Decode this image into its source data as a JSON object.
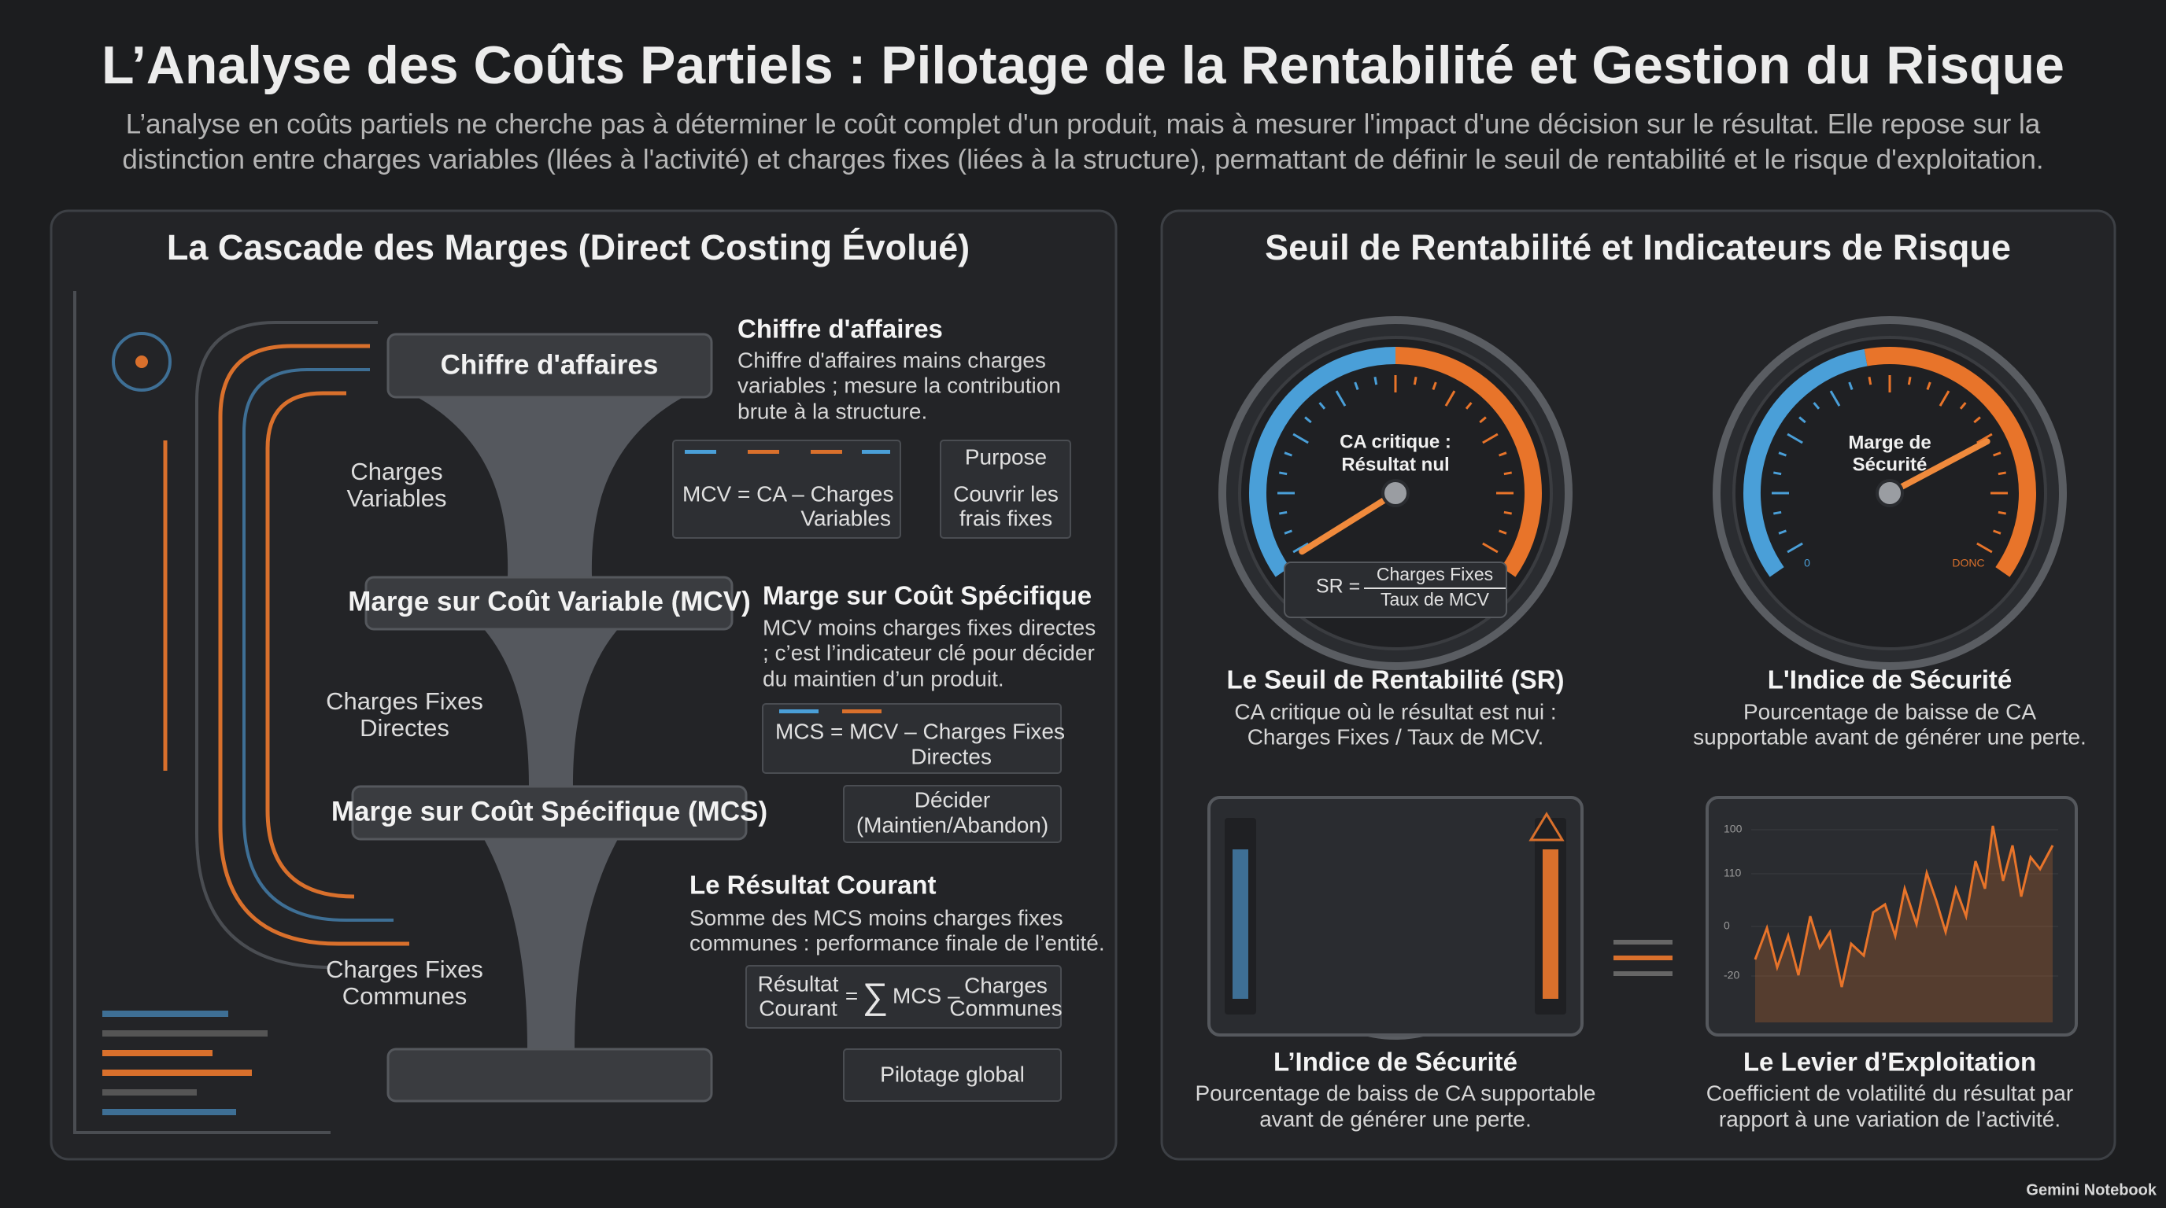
{
  "header": {
    "title": "L’Analyse des Coûts Partiels : Pilotage de la Rentabilité et Gestion du Risque",
    "subtitle": [
      "L’analyse en coûts partiels ne cherche pas à déterminer le coût complet d'un produit, mais à mesurer l'impact d'une décision sur le résultat. Elle repose sur la",
      "distinction entre charges variables (llées à l'activité) et charges fixes (liées à la structure), permattant de définir le seuil de rentabilité et le risque d'exploitation."
    ]
  },
  "left_panel": {
    "title": "La Cascade des Marges (Direct Costing Évolué)",
    "boxes": {
      "ca": "Chiffre d'affaires",
      "mcv": "Marge sur Coût Variable (MCV)",
      "mcs": "Marge sur Coût Spécifique (MCS)"
    },
    "side_labels": [
      [
        "Charges",
        "Variables"
      ],
      [
        "Charges Fixes",
        "Directes"
      ],
      [
        "Charges Fixes",
        "Communes"
      ]
    ],
    "steps": [
      {
        "heading": "Chiffre d'affaires",
        "description": [
          "Chiffre d'affaires mains charges",
          "variables ; mesure la contribution",
          "brute à la structure."
        ],
        "formula": [
          "MCV = CA – Charges",
          "Variables"
        ],
        "note": {
          "title": "Purpose",
          "lines": [
            "Couvrir les",
            "frais fixes"
          ]
        }
      },
      {
        "heading": "Marge sur Coût Spécifique",
        "description": [
          "MCV moins charges fixes directes",
          "; c’est l’indicateur clé pour décider",
          "du maintien d’un produit."
        ],
        "formula": [
          "MCS = MCV – Charges Fixes",
          "Directes"
        ],
        "note": {
          "lines": [
            "Décider",
            "(Maintien/Abandon)"
          ]
        }
      },
      {
        "heading": "Le Résultat Courant",
        "description": [
          "Somme des MCS moins charges fixes",
          "communes : performance finale de l’entité."
        ],
        "formula": {
          "left": [
            "Résultat",
            "Courant"
          ],
          "equals": "=",
          "sigma": "∑",
          "term": "MCS –",
          "right": [
            "Charges",
            "Communes"
          ]
        },
        "note": {
          "lines": [
            "Pilotage global"
          ]
        }
      }
    ]
  },
  "right_panel": {
    "title": "Seuil de Rentabilité et Indicateurs de Risque",
    "gauge_sr": {
      "center_label": [
        "CA critique :",
        "Résultat nul"
      ],
      "formula": {
        "left": "SR =",
        "numerator": "Charges Fixes",
        "denominator": "Taux de MCV"
      },
      "heading": "Le Seuil de Rentabilité (SR)",
      "description": [
        "CA critique où le résultat est nui :",
        "Charges Fixes / Taux de MCV."
      ]
    },
    "gauge_ms": {
      "center_label": [
        "Marge de",
        "Sécurité"
      ],
      "min_label": "0",
      "max_label": "DONC",
      "heading": "L'Indice de Sécurité",
      "description": [
        "Pourcentage de baisse de CA",
        "supportable avant de générer une perte."
      ]
    },
    "gauge_is": {
      "heading": "L’Indice de Sécurité",
      "description": [
        "Pourcentage de baiss de CA supportable",
        "avant de générer une perte."
      ]
    },
    "levier": {
      "axis_labels": [
        "100",
        "110",
        "0",
        "-20"
      ],
      "heading": "Le Levier d’Exploitation",
      "description": [
        "Coefficient de volatilité du résultat par",
        "rapport à une variation de l’activité."
      ]
    }
  },
  "footer": {
    "brand": "Gemini Notebook"
  }
}
